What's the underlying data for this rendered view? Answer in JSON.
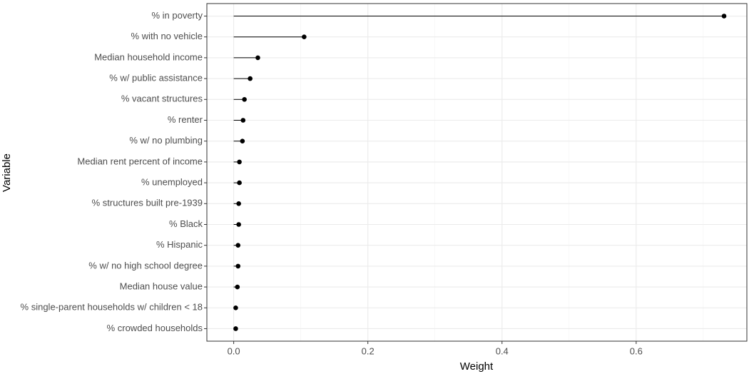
{
  "chart_data": {
    "type": "lollipop",
    "x_label": "Weight",
    "y_label": "Variable",
    "categories": [
      "% in poverty",
      "% with no vehicle",
      "Median household income",
      "% w/ public assistance",
      "% vacant structures",
      "% renter",
      "% w/ no plumbing",
      "Median rent percent of income",
      "% unemployed",
      "% structures built pre-1939",
      "% Black",
      "% Hispanic",
      "% w/ no high school degree",
      "Median house value",
      "% single-parent households w/ children < 18",
      "% crowded households"
    ],
    "values": [
      0.731,
      0.105,
      0.036,
      0.0245,
      0.016,
      0.014,
      0.013,
      0.0085,
      0.0085,
      0.0075,
      0.0075,
      0.0065,
      0.0065,
      0.0055,
      0.003,
      0.003
    ],
    "color": "#000000",
    "xlim": [
      -0.04,
      0.765
    ],
    "xticks": [
      {
        "value": 0,
        "label": "0.0"
      },
      0.2,
      0.4,
      0.6
    ],
    "x_minor_grid": [
      0.1,
      0.3,
      0.5,
      0.7
    ],
    "grid": true
  }
}
